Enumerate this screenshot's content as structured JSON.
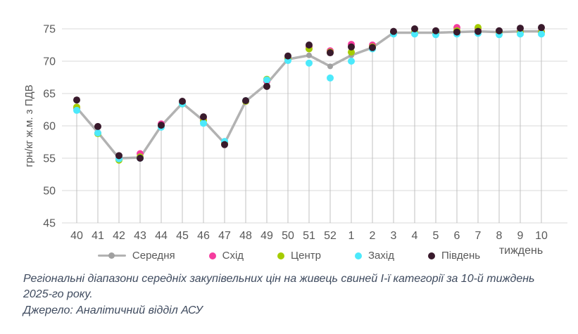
{
  "chart_data": {
    "type": "line",
    "title": "",
    "ylabel": "грн/кг ж.м. з ПДВ",
    "xlabel": "тиждень",
    "ylim": [
      45,
      75
    ],
    "yticks": [
      45,
      50,
      55,
      60,
      65,
      70,
      75
    ],
    "grid": "horizontal",
    "droplines": true,
    "legend_position": "bottom",
    "categories": [
      "40",
      "41",
      "42",
      "43",
      "44",
      "45",
      "46",
      "47",
      "48",
      "49",
      "50",
      "51",
      "52",
      "1",
      "2",
      "3",
      "4",
      "5",
      "6",
      "7",
      "8",
      "9",
      "10"
    ],
    "series": [
      {
        "key": "serednya",
        "name": "Середня",
        "style": "line-marker",
        "color": "#b2b2b2",
        "marker_color": "#a0a0a0",
        "values": [
          62.8,
          59.0,
          55.0,
          55.1,
          60.0,
          63.5,
          60.8,
          57.3,
          63.8,
          66.5,
          70.3,
          70.9,
          69.2,
          70.9,
          72.1,
          74.4,
          74.4,
          74.4,
          74.5,
          74.6,
          74.5,
          74.6,
          74.6
        ]
      },
      {
        "key": "skhid",
        "name": "Схід",
        "style": "marker",
        "color": "#f53c9e",
        "values": [
          62.7,
          58.9,
          54.9,
          55.7,
          60.3,
          63.5,
          61.0,
          57.4,
          63.8,
          66.9,
          70.4,
          72.2,
          71.6,
          72.6,
          72.5,
          74.5,
          74.5,
          74.5,
          75.2,
          74.9,
          74.5,
          74.6,
          74.6
        ]
      },
      {
        "key": "tsentr",
        "name": "Центр",
        "style": "marker",
        "color": "#a5cc00",
        "values": [
          62.9,
          58.8,
          54.7,
          55.2,
          60.0,
          63.4,
          60.8,
          57.3,
          63.8,
          67.2,
          70.4,
          71.9,
          71.4,
          71.4,
          72.2,
          74.4,
          74.5,
          74.4,
          74.7,
          75.2,
          74.5,
          74.5,
          74.5
        ]
      },
      {
        "key": "zakhid",
        "name": "Захід",
        "style": "marker",
        "color": "#4ce9fb",
        "values": [
          62.4,
          58.9,
          54.9,
          55.0,
          59.8,
          63.4,
          60.4,
          57.6,
          63.9,
          67.1,
          70.1,
          69.7,
          67.4,
          70.0,
          71.9,
          74.2,
          74.2,
          74.1,
          74.2,
          74.3,
          74.1,
          74.2,
          74.2
        ]
      },
      {
        "key": "pivden",
        "name": "Південь",
        "style": "marker",
        "color": "#391a2c",
        "values": [
          64.0,
          59.9,
          55.4,
          55.0,
          60.1,
          63.8,
          61.4,
          57.1,
          63.9,
          66.1,
          70.8,
          72.5,
          71.3,
          72.2,
          72.1,
          74.6,
          75.0,
          74.7,
          74.5,
          74.6,
          74.7,
          75.1,
          75.2
        ]
      }
    ]
  },
  "caption": {
    "text": "Регіональні діапазони середніх закупівельних цін на живець свиней І-ї категорії за 10-й тиждень 2025-го року.",
    "source": "Джерело: Аналітичний відділ АСУ"
  },
  "colors": {
    "grid": "#d9d9d9",
    "dropline": "#c0c0c0",
    "axis_text": "#595959",
    "caption_text": "#3e4a5e"
  }
}
